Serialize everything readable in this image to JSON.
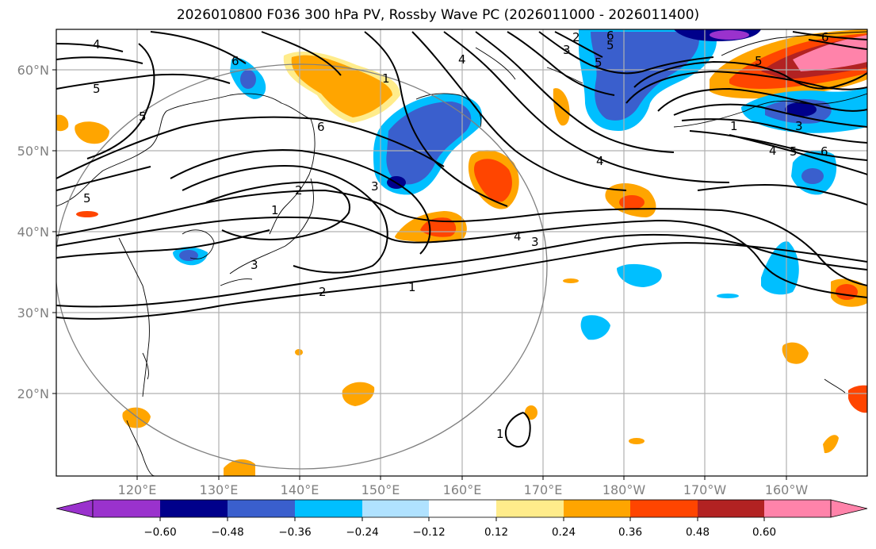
{
  "title": "2026010800 F036 300 hPa PV, Rossby Wave PC (2026011000 - 2026011400)",
  "map": {
    "lon_labels": [
      "120°E",
      "130°E",
      "140°E",
      "150°E",
      "160°E",
      "170°E",
      "180°W",
      "170°W",
      "160°W"
    ],
    "lat_labels": [
      "60°N",
      "50°N",
      "40°N",
      "30°N",
      "20°N"
    ],
    "contour_labels": [
      "4",
      "5",
      "5",
      "5",
      "6",
      "2",
      "1",
      "3",
      "2",
      "1",
      "4",
      "3",
      "3",
      "4",
      "5",
      "6",
      "3",
      "5",
      "2",
      "3",
      "4",
      "5",
      "6",
      "1",
      "5",
      "6",
      "4",
      "6",
      "1",
      "1"
    ]
  },
  "colorbar": {
    "labels": [
      "−0.60",
      "−0.48",
      "−0.36",
      "−0.24",
      "−0.12",
      "0.12",
      "0.24",
      "0.36",
      "0.48",
      "0.60"
    ],
    "colors": [
      "#9a32cd",
      "#00008b",
      "#3a5fcd",
      "#00bfff",
      "#b0e2ff",
      "#ffffff",
      "#ffec8b",
      "#ffa500",
      "#ff4500",
      "#b22222",
      "#ff83aa"
    ]
  },
  "legend_colors": {
    "purple": "#9a32cd",
    "navy": "#00008b",
    "royal": "#3a5fcd",
    "sky": "#00bfff",
    "light": "#b0e2ff",
    "yellow": "#ffec8b",
    "orange": "#ffa500",
    "red": "#ff4500",
    "darkred": "#b22222",
    "pink": "#ff83aa"
  }
}
